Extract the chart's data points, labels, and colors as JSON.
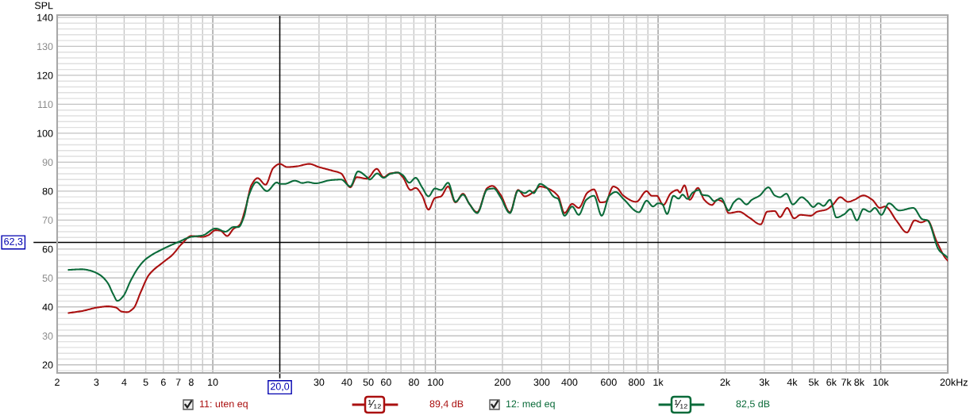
{
  "chart_data": {
    "type": "line",
    "ylabel": "SPL",
    "xlabel": "Hz",
    "xlim": [
      2,
      20000
    ],
    "ylim": [
      17.2,
      140.8
    ],
    "log": "x",
    "grid": true,
    "legend": "bottom",
    "xticks": [
      2,
      3,
      4,
      5,
      6,
      7,
      8,
      {
        "value": 9,
        "label": null
      },
      10,
      30,
      40,
      50,
      60,
      {
        "value": 70,
        "label": null
      },
      80,
      {
        "value": 90,
        "label": null
      },
      100,
      200,
      300,
      400,
      {
        "value": 500,
        "label": null
      },
      600,
      {
        "value": 700,
        "label": null
      },
      800,
      {
        "value": 900,
        "label": null
      },
      {
        "value": 1000,
        "label": "1k"
      },
      {
        "value": 2000,
        "label": "2k"
      },
      {
        "value": 3000,
        "label": "3k"
      },
      {
        "value": 4000,
        "label": "4k"
      },
      {
        "value": 5000,
        "label": "5k"
      },
      {
        "value": 6000,
        "label": "6k"
      },
      {
        "value": 7000,
        "label": "7k"
      },
      {
        "value": 8000,
        "label": "8k"
      },
      {
        "value": 9000,
        "label": null
      },
      {
        "value": 10000,
        "label": "10k"
      },
      {
        "value": 20000,
        "label": "20k"
      }
    ],
    "yticks": [
      {
        "value": 18,
        "label": null
      },
      20,
      {
        "value": 22,
        "label": null
      },
      {
        "value": 24,
        "label": null
      },
      {
        "value": 26,
        "label": null
      },
      {
        "value": 28,
        "label": null
      },
      30,
      {
        "value": 32,
        "label": null
      },
      {
        "value": 34,
        "label": null
      },
      {
        "value": 36,
        "label": null
      },
      {
        "value": 38,
        "label": null
      },
      40,
      {
        "value": 42,
        "label": null
      },
      {
        "value": 44,
        "label": null
      },
      {
        "value": 46,
        "label": null
      },
      {
        "value": 48,
        "label": null
      },
      50,
      {
        "value": 52,
        "label": null
      },
      {
        "value": 54,
        "label": null
      },
      {
        "value": 56,
        "label": null
      },
      {
        "value": 58,
        "label": null
      },
      60,
      {
        "value": 64,
        "label": null
      },
      {
        "value": 66,
        "label": null
      },
      {
        "value": 68,
        "label": null
      },
      70,
      {
        "value": 72,
        "label": null
      },
      {
        "value": 74,
        "label": null
      },
      {
        "value": 76,
        "label": null
      },
      {
        "value": 78,
        "label": null
      },
      80,
      {
        "value": 82,
        "label": null
      },
      {
        "value": 84,
        "label": null
      },
      {
        "value": 86,
        "label": null
      },
      {
        "value": 88,
        "label": null
      },
      90,
      {
        "value": 92,
        "label": null
      },
      {
        "value": 94,
        "label": null
      },
      {
        "value": 96,
        "label": null
      },
      {
        "value": 98,
        "label": null
      },
      100,
      {
        "value": 102,
        "label": null
      },
      {
        "value": 104,
        "label": null
      },
      {
        "value": 106,
        "label": null
      },
      {
        "value": 108,
        "label": null
      },
      110,
      {
        "value": 112,
        "label": null
      },
      {
        "value": 114,
        "label": null
      },
      {
        "value": 116,
        "label": null
      },
      {
        "value": 118,
        "label": null
      },
      120,
      {
        "value": 122,
        "label": null
      },
      {
        "value": 124,
        "label": null
      },
      {
        "value": 126,
        "label": null
      },
      {
        "value": 128,
        "label": null
      },
      130,
      {
        "value": 132,
        "label": null
      },
      {
        "value": 134,
        "label": null
      },
      {
        "value": 136,
        "label": null
      },
      {
        "value": 138,
        "label": null
      },
      140
    ],
    "ref_lines": [
      {
        "axis": "x",
        "value": 20,
        "label": "20,0",
        "color": "#000000"
      },
      {
        "axis": "y",
        "value": 62.3,
        "label": "62,3",
        "color": "#000000"
      }
    ],
    "annotations": [
      "¹⁄₁₂",
      "89,4 dB",
      "¹⁄₁₂",
      "82,5 dB"
    ],
    "series": [
      {
        "name": "11: uten eq",
        "color": "#aa1010",
        "x": [
          2.25,
          2.59,
          3.03,
          3.38,
          3.67,
          3.9,
          4.12,
          4.4,
          4.77,
          5.16,
          6,
          6.55,
          7.28,
          8,
          9,
          9.5,
          10.3,
          10.85,
          11.6,
          12.4,
          13.2,
          14.1,
          14.9,
          15.9,
          17.25,
          18.7,
          20,
          21.6,
          24,
          27.1,
          30,
          33.9,
          37.7,
          41.45,
          44.3,
          49.3,
          54.5,
          58.5,
          62.5,
          67.7,
          71.4,
          77.3,
          81.5,
          87.1,
          93.1,
          99.4,
          106,
          114,
          123,
          133,
          142,
          154,
          171,
          180,
          196,
          216,
          235,
          252,
          276,
          295,
          315,
          355,
          380,
          411,
          440,
          482,
          515,
          551,
          581,
          629,
          654,
          699,
          798,
          888,
          936,
          986,
          1055,
          1142,
          1220,
          1253,
          1314,
          1386,
          1509,
          1612,
          1746,
          1841,
          1967,
          2074,
          2307,
          2564,
          2889,
          3088,
          3344,
          3526,
          3799,
          4082,
          4360,
          4849,
          5183,
          5683,
          6077,
          6580,
          7126,
          7612,
          8356,
          9165,
          9922,
          10460,
          11790,
          13110,
          14200,
          15180,
          16210,
          17790,
          19510,
          20000
        ],
        "values": [
          37.9,
          38.6,
          39.8,
          40.2,
          39.8,
          38.4,
          38.2,
          39.5,
          45.5,
          51,
          55.5,
          57.8,
          61.9,
          64.5,
          64.2,
          64.7,
          66.5,
          66.3,
          64.5,
          67,
          68.3,
          74.7,
          82,
          84.5,
          82.2,
          88,
          89.4,
          88.3,
          88.6,
          89.4,
          88.3,
          87.2,
          86.1,
          81.3,
          84.8,
          84.3,
          87.7,
          84.8,
          86.1,
          86.4,
          84.8,
          80.4,
          81.1,
          78.5,
          73.6,
          77.6,
          78.2,
          81.6,
          76.1,
          79.1,
          75.6,
          72.7,
          81.1,
          81.8,
          78.8,
          72.7,
          80.4,
          78.2,
          79.7,
          81.6,
          81.1,
          78.4,
          72.4,
          75.6,
          74.2,
          79.5,
          80.6,
          76.1,
          76.3,
          81.6,
          81.1,
          78.4,
          76.3,
          80,
          78.4,
          78.4,
          75.2,
          79.3,
          80.4,
          79.5,
          82,
          77,
          81.1,
          77,
          75.2,
          77,
          76.1,
          72.4,
          72.9,
          70.9,
          68.5,
          72.9,
          73.1,
          71,
          74.2,
          70.6,
          71.8,
          71.5,
          72.9,
          73.6,
          75.2,
          77.9,
          76.3,
          77,
          78.5,
          77,
          74.2,
          74.7,
          69.7,
          65.7,
          69.9,
          69.2,
          69.9,
          62.8,
          56.9,
          56
        ]
      },
      {
        "name": "12: med eq",
        "color": "#0b6b3a",
        "x": [
          2.25,
          2.59,
          2.8,
          3.12,
          3.38,
          3.56,
          3.73,
          3.96,
          4.28,
          4.64,
          5,
          6,
          7,
          8,
          9,
          10.3,
          11.4,
          12.4,
          13.05,
          13.8,
          14.5,
          15.7,
          17.5,
          19.4,
          20,
          21,
          23.4,
          25.3,
          26.7,
          28.9,
          33.9,
          37.75,
          41.45,
          44.9,
          49.3,
          50.6,
          54.75,
          58.5,
          62.5,
          67.7,
          71.4,
          76.3,
          81.5,
          87.1,
          93.1,
          99.4,
          106,
          114,
          123,
          133,
          142,
          154,
          171,
          183,
          196,
          216,
          235,
          252,
          265,
          276,
          295,
          315,
          342,
          355,
          380,
          411,
          440,
          476,
          515,
          558,
          604,
          645,
          699,
          820,
          888,
          948,
          1000,
          1041,
          1098,
          1172,
          1237,
          1287,
          1356,
          1431,
          1528,
          1570,
          1678,
          1792,
          1916,
          2074,
          2187,
          2307,
          2497,
          2634,
          2853,
          3129,
          3344,
          3526,
          3769,
          4026,
          4418,
          4658,
          4981,
          5250,
          5537,
          5916,
          6324,
          6847,
          7314,
          7816,
          8356,
          8925,
          9413,
          10060,
          10890,
          12110,
          14010,
          15370,
          16210,
          18270,
          19670,
          20000
        ],
        "values": [
          52.8,
          53,
          52.6,
          51,
          48.2,
          44.6,
          42.1,
          43.7,
          49.1,
          53.7,
          56.5,
          60.1,
          62.4,
          64.2,
          64.7,
          67.1,
          66,
          67.6,
          67.6,
          71.1,
          78.4,
          83.1,
          80,
          83,
          82.5,
          82.5,
          83.6,
          82.8,
          83.1,
          82.7,
          83.8,
          84,
          81.6,
          86.8,
          84.8,
          84,
          86.1,
          84.6,
          85.9,
          86.4,
          85.5,
          82.9,
          84.6,
          81.3,
          78.2,
          80.9,
          80.4,
          82.9,
          76.3,
          78.8,
          75.6,
          72.4,
          80.6,
          80.9,
          77.9,
          72.4,
          80.2,
          79.3,
          80.2,
          79.3,
          82.5,
          81.3,
          77.9,
          77.4,
          71.5,
          74.7,
          71.8,
          77,
          78.4,
          71.5,
          78.4,
          79.7,
          77.3,
          72.7,
          76.7,
          74.7,
          75.8,
          75.6,
          72.1,
          78.4,
          77.4,
          78.8,
          77.3,
          79.5,
          80.4,
          78.8,
          78.4,
          76.5,
          77.6,
          73.3,
          76.1,
          77.4,
          75.4,
          77,
          78.4,
          81.3,
          78.5,
          77.9,
          79.1,
          75.4,
          77.9,
          76.7,
          74.5,
          75.8,
          74.9,
          77,
          70.9,
          72,
          73.8,
          69.9,
          73.8,
          72.9,
          74.2,
          71.8,
          75.8,
          73.3,
          74.2,
          70.3,
          69.9,
          59.6,
          57.5,
          57
        ]
      }
    ]
  }
}
